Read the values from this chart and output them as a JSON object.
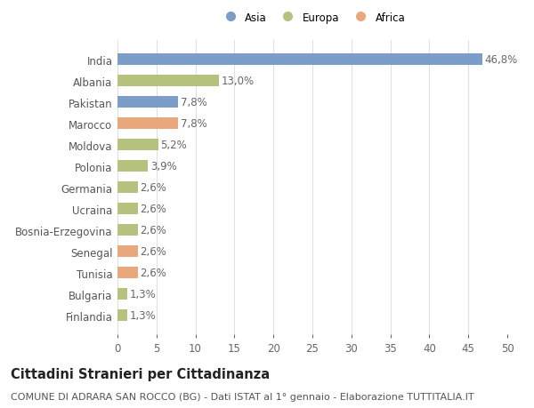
{
  "countries": [
    "India",
    "Albania",
    "Pakistan",
    "Marocco",
    "Moldova",
    "Polonia",
    "Germania",
    "Ucraina",
    "Bosnia-Erzegovina",
    "Senegal",
    "Tunisia",
    "Bulgaria",
    "Finlandia"
  ],
  "values": [
    46.8,
    13.0,
    7.8,
    7.8,
    5.2,
    3.9,
    2.6,
    2.6,
    2.6,
    2.6,
    2.6,
    1.3,
    1.3
  ],
  "labels": [
    "46,8%",
    "13,0%",
    "7,8%",
    "7,8%",
    "5,2%",
    "3,9%",
    "2,6%",
    "2,6%",
    "2,6%",
    "2,6%",
    "2,6%",
    "1,3%",
    "1,3%"
  ],
  "continents": [
    "Asia",
    "Europa",
    "Asia",
    "Africa",
    "Europa",
    "Europa",
    "Europa",
    "Europa",
    "Europa",
    "Africa",
    "Africa",
    "Europa",
    "Europa"
  ],
  "colors": {
    "Asia": "#7b9dc7",
    "Europa": "#b5c27e",
    "Africa": "#e8a87c"
  },
  "legend_labels": [
    "Asia",
    "Europa",
    "Africa"
  ],
  "legend_colors": [
    "#7b9dc7",
    "#b5c27e",
    "#e8a87c"
  ],
  "title": "Cittadini Stranieri per Cittadinanza",
  "subtitle": "COMUNE DI ADRARA SAN ROCCO (BG) - Dati ISTAT al 1° gennaio - Elaborazione TUTTITALIA.IT",
  "xlim": [
    0,
    50
  ],
  "xticks": [
    0,
    5,
    10,
    15,
    20,
    25,
    30,
    35,
    40,
    45,
    50
  ],
  "bg_color": "#ffffff",
  "grid_color": "#e0e0e0",
  "bar_height": 0.55,
  "label_fontsize": 8.5,
  "tick_fontsize": 8.5,
  "title_fontsize": 10.5,
  "subtitle_fontsize": 8.0
}
